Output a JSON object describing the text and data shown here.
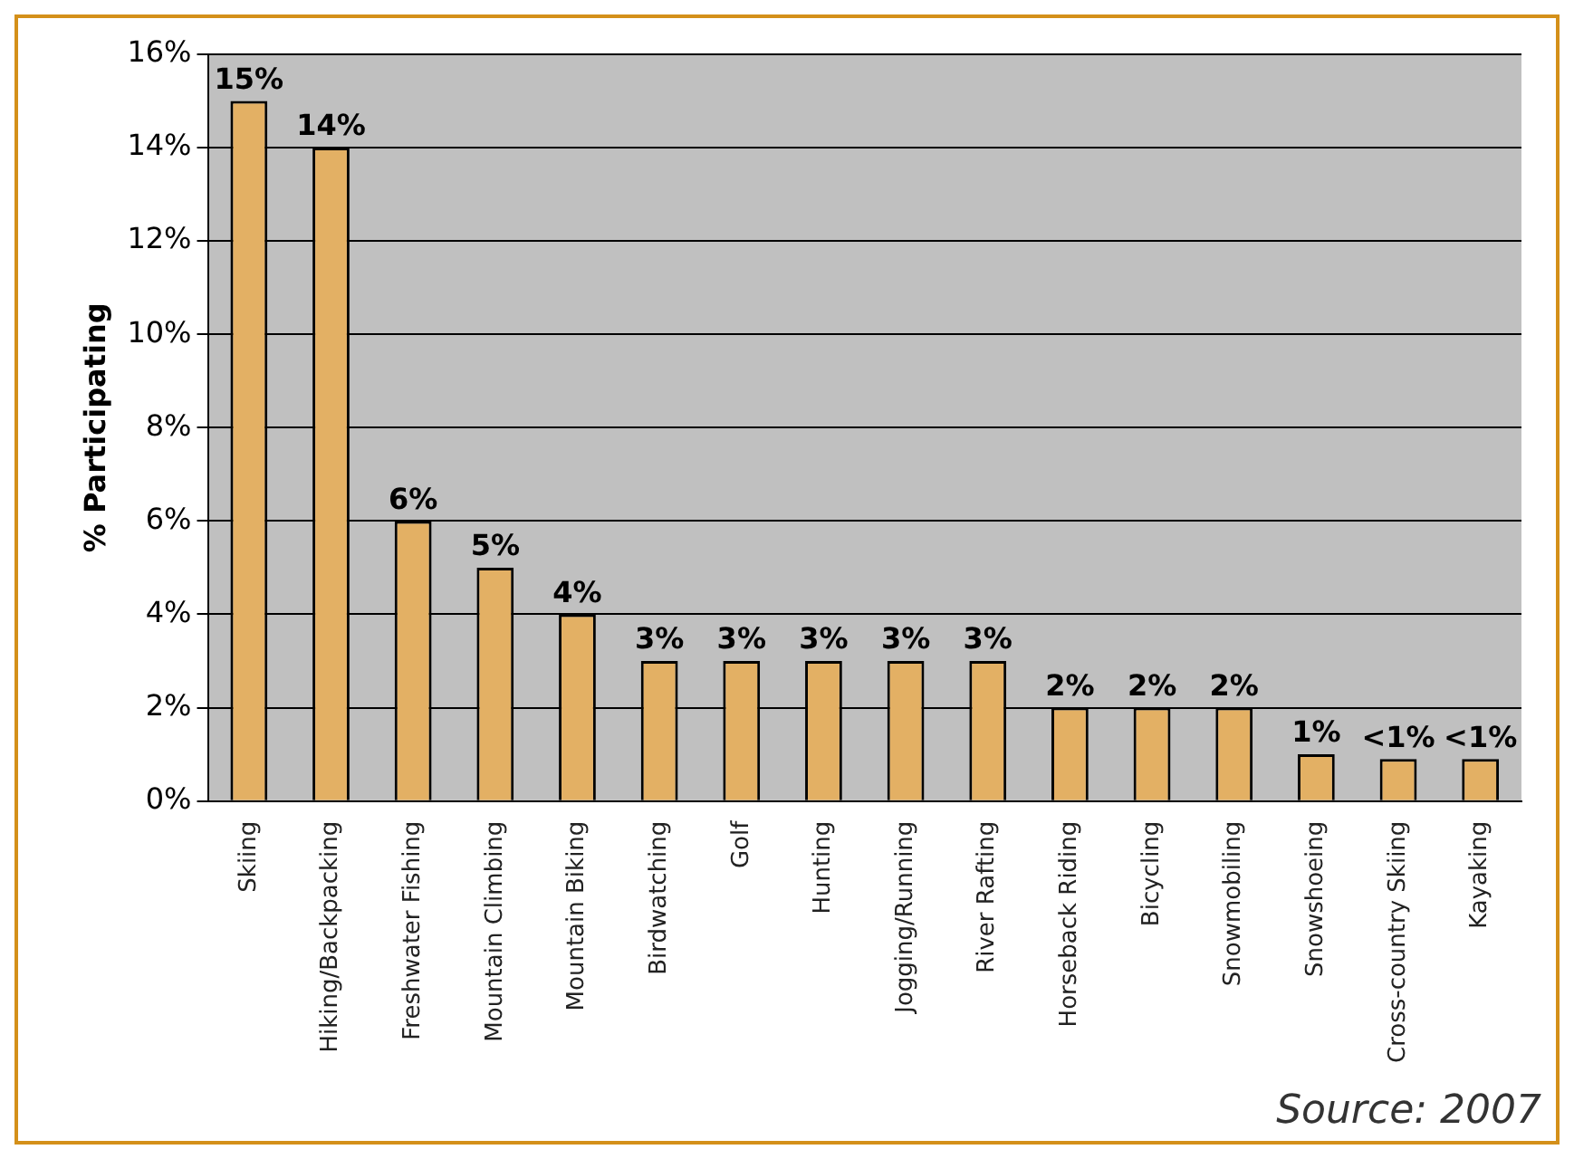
{
  "chart_data": {
    "type": "bar",
    "ylabel": "% Participating",
    "categories": [
      "Skiing",
      "Hiking/Backpacking",
      "Freshwater Fishing",
      "Mountain Climbing",
      "Mountain Biking",
      "Birdwatching",
      "Golf",
      "Hunting",
      "Jogging/Running",
      "River Rafting",
      "Horseback Riding",
      "Bicycling",
      "Snowmobiling",
      "Snowshoeing",
      "Cross-country Skiing",
      "Kayaking"
    ],
    "values": [
      15,
      14,
      6,
      5,
      4,
      3,
      3,
      3,
      3,
      3,
      2,
      2,
      2,
      1,
      0.9,
      0.9
    ],
    "value_labels": [
      "15%",
      "14%",
      "6%",
      "5%",
      "4%",
      "3%",
      "3%",
      "3%",
      "3%",
      "3%",
      "2%",
      "2%",
      "2%",
      "1%",
      "<1%",
      "<1%"
    ],
    "color": "#e3b064",
    "ylim": [
      0,
      16
    ],
    "yticks": [
      {
        "value": 0,
        "label": "0%"
      },
      {
        "value": 2,
        "label": "2%"
      },
      {
        "value": 4,
        "label": "4%"
      },
      {
        "value": 6,
        "label": "6%"
      },
      {
        "value": 8,
        "label": "8%"
      },
      {
        "value": 10,
        "label": "10%"
      },
      {
        "value": 12,
        "label": "12%"
      },
      {
        "value": 14,
        "label": "14%"
      },
      {
        "value": 16,
        "label": "16%"
      }
    ],
    "grid": "y",
    "legend": false,
    "annotations": [
      "Source: 2007"
    ]
  }
}
